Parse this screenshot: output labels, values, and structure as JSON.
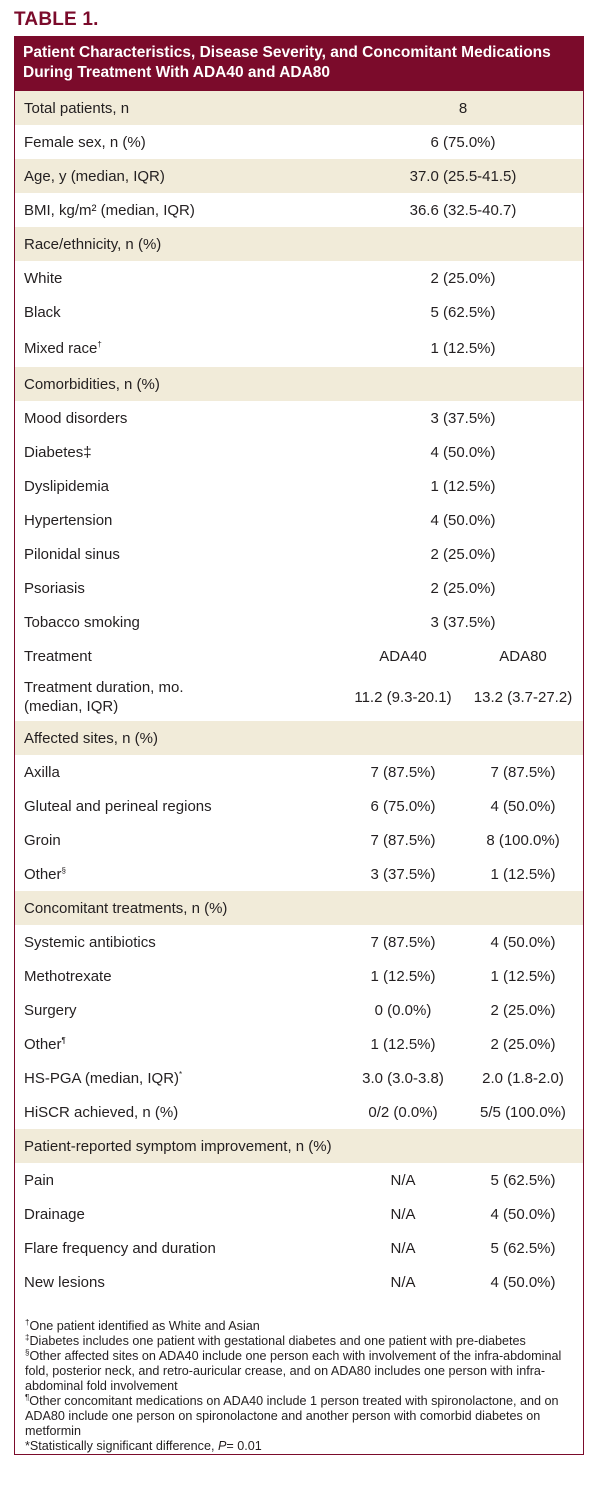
{
  "table_label": "TABLE 1.",
  "caption": "Patient Characteristics, Disease Severity, and Concomitant Medications During Treatment With ADA40 and ADA80",
  "rows": {
    "total": {
      "label": "Total patients, n",
      "value": "8"
    },
    "female": {
      "label": "Female sex, n (%)",
      "value": "6 (75.0%)"
    },
    "age": {
      "label": "Age, y (median, IQR)",
      "value": "37.0 (25.5-41.5)"
    },
    "bmi": {
      "label": "BMI, kg/m² (median, IQR)",
      "value": "36.6 (32.5-40.7)"
    },
    "race_header": {
      "label": "Race/ethnicity, n (%)"
    },
    "white": {
      "label": "White",
      "value": "2 (25.0%)"
    },
    "black": {
      "label": "Black",
      "value": "5 (62.5%)"
    },
    "mixed": {
      "label": "Mixed race",
      "mark": "†",
      "value": "1 (12.5%)"
    },
    "comorb_header": {
      "label": "Comorbidities, n (%)"
    },
    "mood": {
      "label": "Mood disorders",
      "value": "3 (37.5%)"
    },
    "diabetes": {
      "label": "Diabetes‡",
      "value": "4 (50.0%)"
    },
    "dyslipidemia": {
      "label": "Dyslipidemia",
      "value": "1 (12.5%)"
    },
    "hypertension": {
      "label": "Hypertension",
      "value": "4 (50.0%)"
    },
    "pilonidal": {
      "label": "Pilonidal sinus",
      "value": "2 (25.0%)"
    },
    "psoriasis": {
      "label": "Psoriasis",
      "value": "2 (25.0%)"
    },
    "tobacco": {
      "label": "Tobacco smoking",
      "value": "3 (37.5%)"
    },
    "treatment": {
      "label": "Treatment",
      "ada40": "ADA40",
      "ada80": "ADA80"
    },
    "duration": {
      "label_line1": "Treatment duration, mo.",
      "label_line2": "(median, IQR)",
      "ada40": "11.2 (9.3-20.1)",
      "ada80": "13.2 (3.7-27.2)"
    },
    "sites_header": {
      "label": "Affected sites, n (%)"
    },
    "axilla": {
      "label": "Axilla",
      "ada40": "7 (87.5%)",
      "ada80": "7 (87.5%)"
    },
    "gluteal": {
      "label": "Gluteal and perineal regions",
      "ada40": "6 (75.0%)",
      "ada80": "4 (50.0%)"
    },
    "groin": {
      "label": "Groin",
      "ada40": "7 (87.5%)",
      "ada80": "8 (100.0%)"
    },
    "other_sites": {
      "label": "Other",
      "mark": "§",
      "ada40": "3 (37.5%)",
      "ada80": "1 (12.5%)"
    },
    "concomitant_header": {
      "label": "Concomitant treatments, n (%)"
    },
    "antibiotics": {
      "label": "Systemic antibiotics",
      "ada40": "7 (87.5%)",
      "ada80": "4 (50.0%)"
    },
    "methotrexate": {
      "label": "Methotrexate",
      "ada40": "1 (12.5%)",
      "ada80": "1 (12.5%)"
    },
    "surgery": {
      "label": "Surgery",
      "ada40": "0 (0.0%)",
      "ada80": "2 (25.0%)"
    },
    "other_treat": {
      "label": "Other",
      "mark": "¶",
      "ada40": "1 (12.5%)",
      "ada80": "2 (25.0%)"
    },
    "hspga": {
      "label": "HS-PGA (median, IQR)",
      "mark": "*",
      "ada40": "3.0 (3.0-3.8)",
      "ada80": "2.0 (1.8-2.0)"
    },
    "hiscr": {
      "label": "HiSCR achieved, n (%)",
      "ada40": "0/2 (0.0%)",
      "ada80": "5/5 (100.0%)"
    },
    "symptom_header": {
      "label": "Patient-reported symptom improvement, n (%)"
    },
    "pain": {
      "label": "Pain",
      "ada40": "N/A",
      "ada80": "5 (62.5%)"
    },
    "drainage": {
      "label": "Drainage",
      "ada40": "N/A",
      "ada80": "4 (50.0%)"
    },
    "flare": {
      "label": "Flare frequency and duration",
      "ada40": "N/A",
      "ada80": "5 (62.5%)"
    },
    "lesions": {
      "label": "New lesions",
      "ada40": "N/A",
      "ada80": "4 (50.0%)"
    }
  },
  "footnotes": {
    "n1_mark": "†",
    "n1": "One patient identified as White and Asian",
    "n2_mark": "‡",
    "n2": "Diabetes includes one patient with gestational diabetes and one patient with pre-diabetes",
    "n3_mark": "§",
    "n3": "Other affected sites on ADA40 include one person each with involvement of the infra-abdominal fold, posterior neck, and retro-auricular crease, and on ADA80 includes one person with infra-abdominal fold involvement",
    "n4_mark": "¶",
    "n4": "Other concomitant medications on ADA40 include 1 person treated with spironolactone, and on ADA80 include one person on spironolactone and another person with comorbid diabetes on metformin",
    "n5": "*Statistically significant difference, ",
    "n5_p": "P",
    "n5_val": "= 0.01"
  }
}
